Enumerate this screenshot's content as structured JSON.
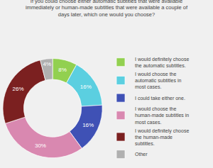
{
  "chart_data": {
    "type": "donut",
    "title": "If you could choose either automatic subtitles that were available\nimmediately or human-made subtitles that were available a couple of\ndays later, which one would you choose?",
    "categories": [
      "I would definitely choose\nthe automatic subtitles.",
      "I would choose the\nautomatic subtitles in\nmost cases.",
      "I could take either one.",
      "I would choose the\nhuman-made subtitles in\nmost cases.",
      "I would definitely choose\nthe human-made\nsubtitles.",
      "Other"
    ],
    "values": [
      8,
      16,
      16,
      30,
      26,
      4
    ],
    "value_labels": [
      "8%",
      "16%",
      "16%",
      "30%",
      "26%",
      "4%"
    ],
    "colors": [
      "#92d050",
      "#5bcfe0",
      "#3f51b5",
      "#d988b0",
      "#7b2020",
      "#b0b0b0"
    ],
    "data_labels": true,
    "legend": "right"
  }
}
